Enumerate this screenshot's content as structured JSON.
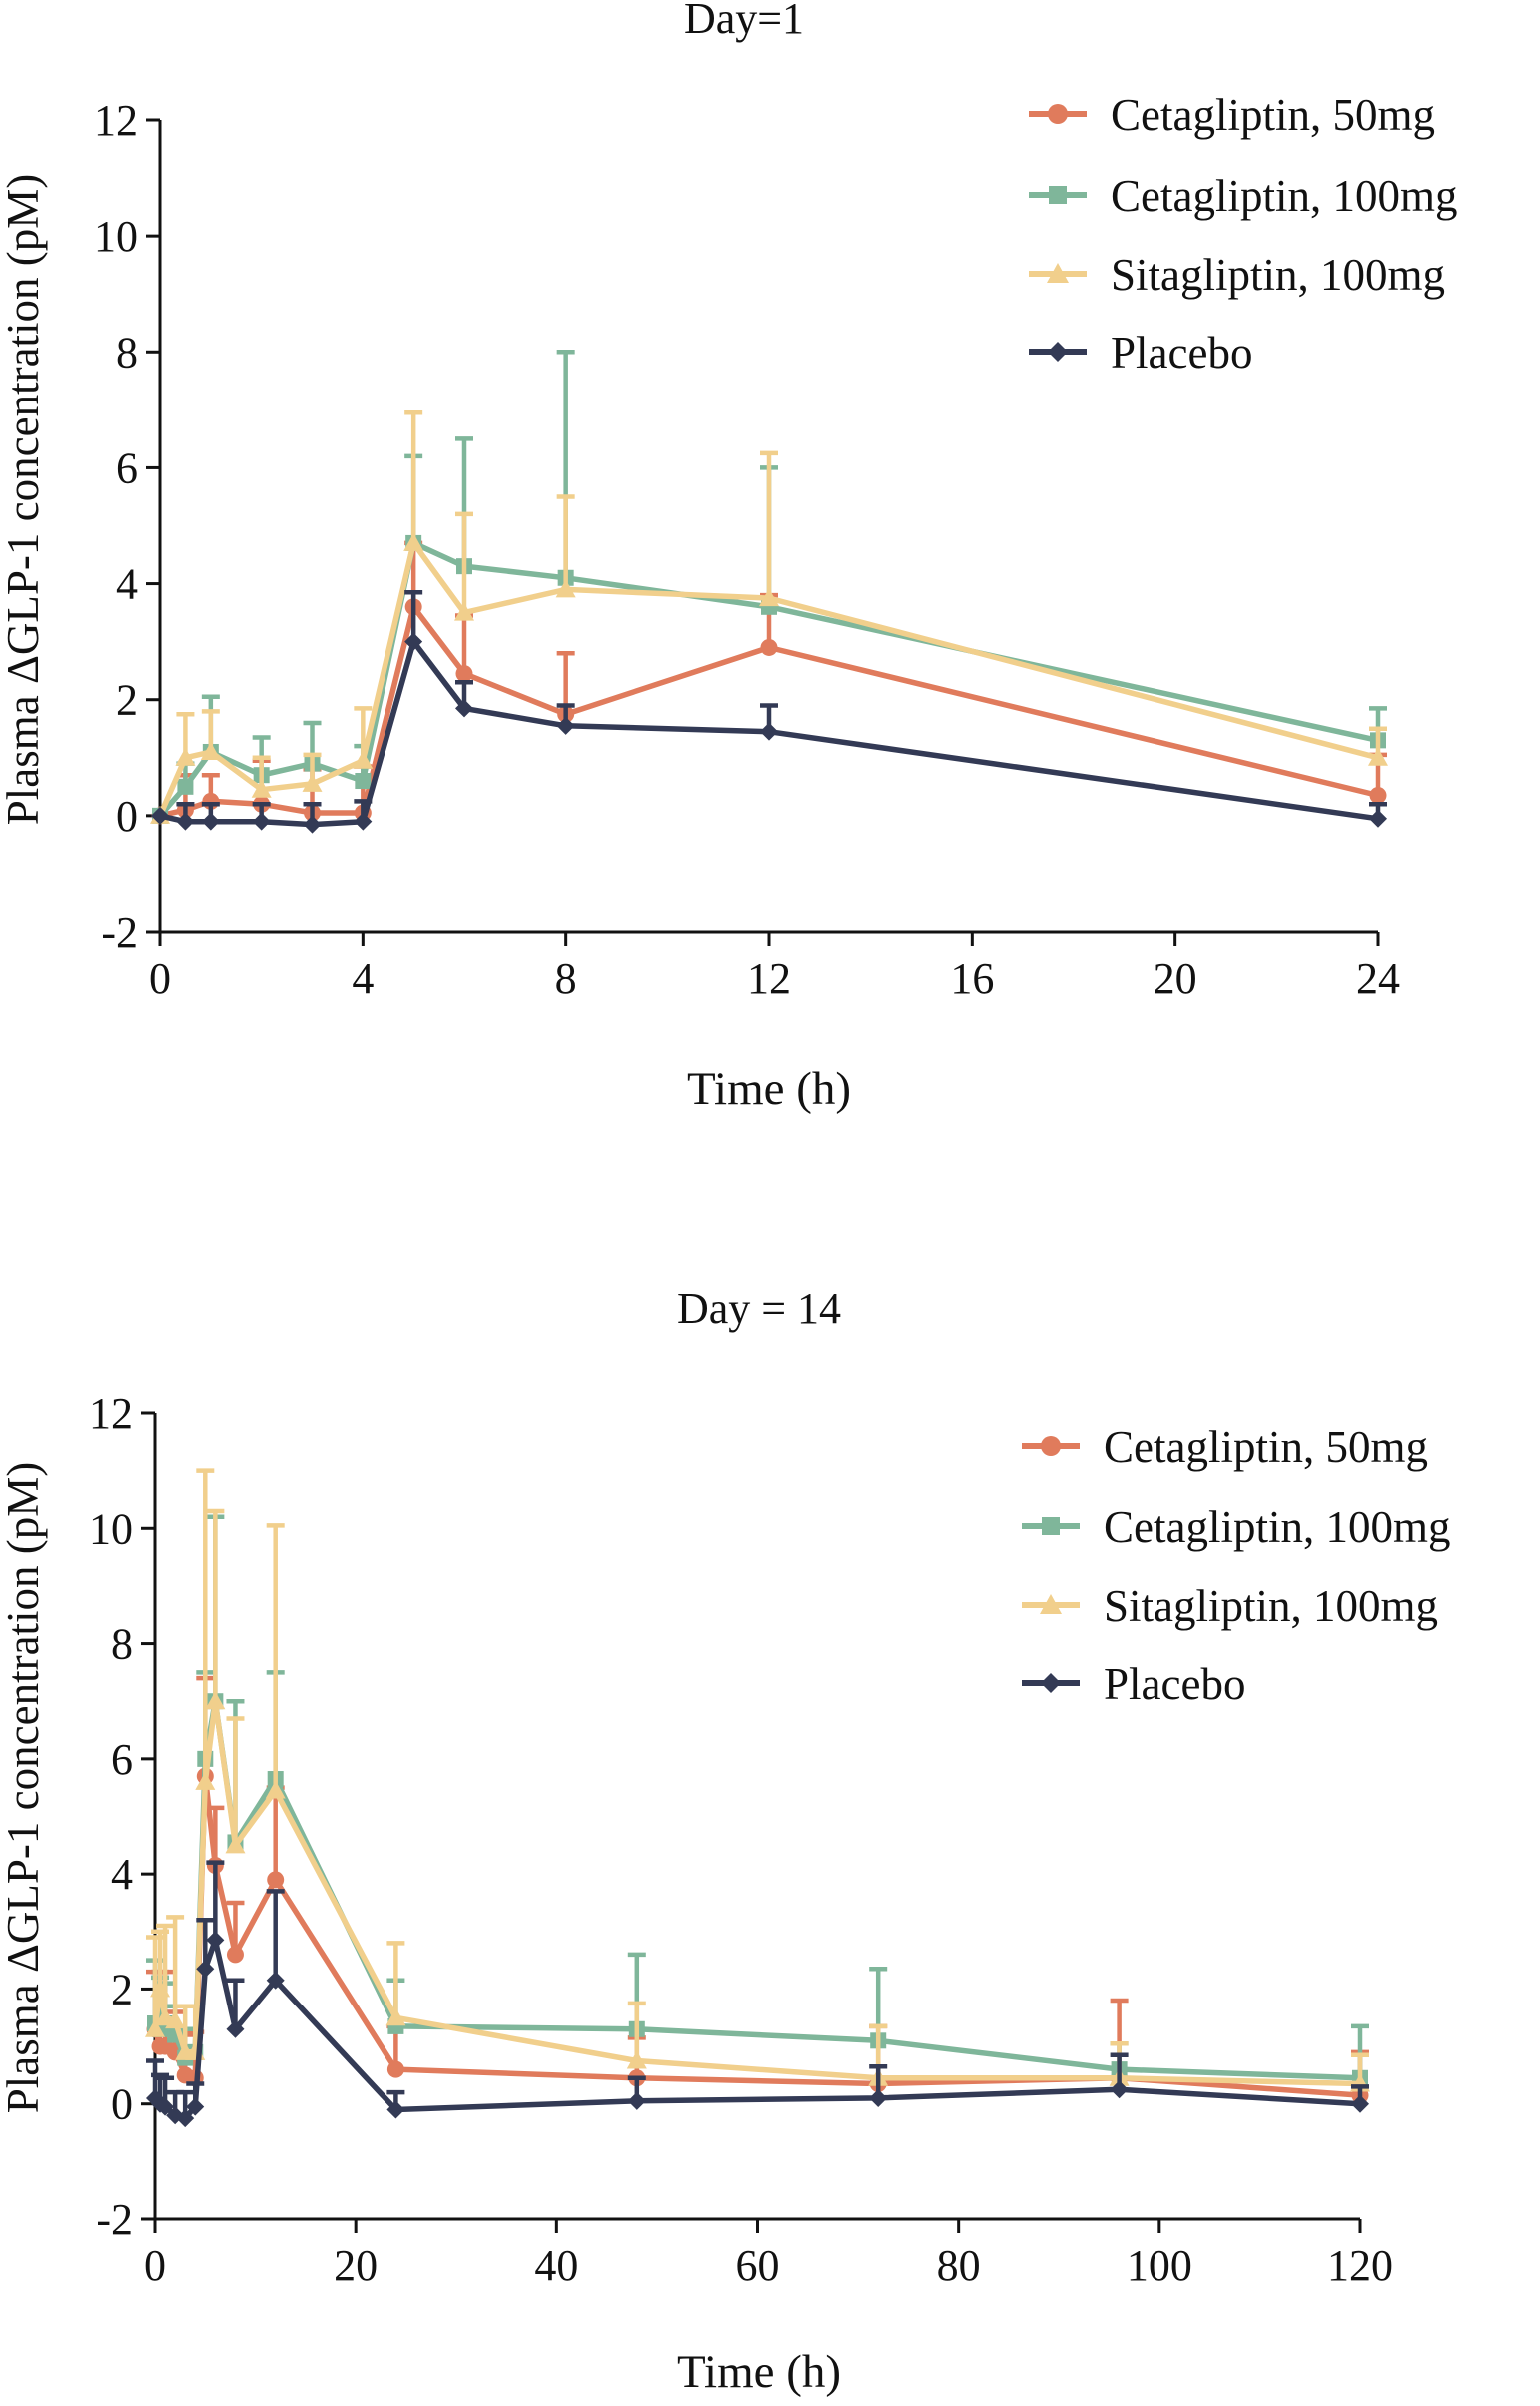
{
  "colors": {
    "cet50": "#e07b5c",
    "cet100": "#7fb69a",
    "sita100": "#f1cf8c",
    "placebo": "#333a55",
    "axis": "#111111"
  },
  "chart_data": [
    {
      "type": "line",
      "title": "Day=1",
      "xlabel": "Time (h)",
      "ylabel": "Plasma ΔGLP-1 concentration (pM)",
      "xlim": [
        0,
        24
      ],
      "ylim": [
        -2,
        12
      ],
      "xticks": [
        0,
        4,
        8,
        12,
        16,
        20,
        24
      ],
      "yticks": [
        -2,
        0,
        2,
        4,
        6,
        8,
        10,
        12
      ],
      "xtick_labels": [
        "0",
        "4",
        "8",
        "12",
        "16",
        "20",
        "24"
      ],
      "ytick_labels": [
        "-2",
        "0",
        "2",
        "4",
        "6",
        "8",
        "10",
        "12"
      ],
      "legend_position": "top-right",
      "series": [
        {
          "name": "Cetagliptin, 50mg",
          "color_key": "cet50",
          "marker": "circle",
          "x": [
            0,
            0.5,
            1,
            2,
            3,
            4,
            5,
            6,
            8,
            12,
            24
          ],
          "values": [
            0,
            0.1,
            0.25,
            0.2,
            0.05,
            0.05,
            3.6,
            2.45,
            1.75,
            2.9,
            0.35
          ],
          "errors": [
            0,
            0.6,
            0.45,
            0.75,
            0.75,
            0.8,
            1.1,
            1.0,
            1.05,
            0.9,
            0.7
          ]
        },
        {
          "name": "Cetagliptin, 100mg",
          "color_key": "cet100",
          "marker": "square",
          "x": [
            0,
            0.5,
            1,
            2,
            3,
            4,
            5,
            6,
            8,
            12,
            24
          ],
          "values": [
            0,
            0.5,
            1.1,
            0.7,
            0.9,
            0.6,
            4.7,
            4.3,
            4.1,
            3.6,
            1.3
          ],
          "errors": [
            0,
            0.4,
            0.95,
            0.65,
            0.7,
            0.6,
            1.5,
            2.2,
            3.9,
            2.4,
            0.55
          ]
        },
        {
          "name": "Sitagliptin, 100mg",
          "color_key": "sita100",
          "marker": "triangle",
          "x": [
            0,
            0.5,
            1,
            2,
            3,
            4,
            5,
            6,
            8,
            12,
            24
          ],
          "values": [
            0,
            1.0,
            1.1,
            0.45,
            0.55,
            0.95,
            4.7,
            3.5,
            3.9,
            3.75,
            1.0
          ],
          "errors": [
            0,
            0.75,
            0.7,
            0.55,
            0.5,
            0.9,
            2.25,
            1.7,
            1.6,
            2.5,
            0.5
          ]
        },
        {
          "name": "Placebo",
          "color_key": "placebo",
          "marker": "diamond",
          "x": [
            0,
            0.5,
            1,
            2,
            3,
            4,
            5,
            6,
            8,
            12,
            24
          ],
          "values": [
            0,
            -0.1,
            -0.1,
            -0.1,
            -0.15,
            -0.1,
            3.0,
            1.85,
            1.55,
            1.45,
            -0.05
          ],
          "errors": [
            0,
            0.3,
            0.3,
            0.3,
            0.35,
            0.35,
            0.85,
            0.45,
            0.35,
            0.45,
            0.25
          ]
        }
      ]
    },
    {
      "type": "line",
      "title": "Day = 14",
      "xlabel": "Time (h)",
      "ylabel": "Plasma ΔGLP-1 concentration (pM)",
      "xlim": [
        0,
        120
      ],
      "ylim": [
        -2,
        12
      ],
      "xticks": [
        0,
        20,
        40,
        60,
        80,
        100,
        120
      ],
      "yticks": [
        -2,
        0,
        2,
        4,
        6,
        8,
        10,
        12
      ],
      "xtick_labels": [
        "0",
        "20",
        "40",
        "60",
        "80",
        "100",
        "120"
      ],
      "ytick_labels": [
        "-2",
        "0",
        "2",
        "4",
        "6",
        "8",
        "10",
        "12"
      ],
      "legend_position": "top-right",
      "series": [
        {
          "name": "Cetagliptin, 50mg",
          "color_key": "cet50",
          "marker": "circle",
          "x": [
            0,
            0.5,
            1,
            2,
            3,
            4,
            5,
            6,
            8,
            12,
            24,
            48,
            72,
            96,
            120
          ],
          "values": [
            1.3,
            1.0,
            1.0,
            0.9,
            0.5,
            0.45,
            5.7,
            4.15,
            2.6,
            3.9,
            0.6,
            0.45,
            0.35,
            0.45,
            0.15
          ],
          "errors": [
            1.0,
            1.3,
            1.3,
            0.7,
            0.7,
            0.8,
            1.7,
            1.0,
            0.9,
            1.6,
            0.75,
            0.7,
            1.0,
            1.35,
            0.75
          ]
        },
        {
          "name": "Cetagliptin, 100mg",
          "color_key": "cet100",
          "marker": "square",
          "x": [
            0,
            0.5,
            1,
            2,
            3,
            4,
            5,
            6,
            8,
            12,
            24,
            48,
            72,
            96,
            120
          ],
          "values": [
            1.4,
            1.3,
            1.4,
            1.2,
            0.8,
            0.9,
            6.0,
            7.0,
            4.55,
            5.65,
            1.35,
            1.3,
            1.1,
            0.6,
            0.45
          ],
          "errors": [
            1.1,
            0.9,
            0.7,
            0.5,
            0.5,
            0.8,
            1.5,
            3.2,
            2.45,
            1.85,
            0.8,
            1.3,
            1.25,
            0.45,
            0.9
          ]
        },
        {
          "name": "Sitagliptin, 100mg",
          "color_key": "sita100",
          "marker": "triangle",
          "x": [
            0,
            0.5,
            1,
            2,
            3,
            4,
            5,
            6,
            8,
            12,
            24,
            48,
            72,
            96,
            120
          ],
          "values": [
            1.3,
            2.0,
            1.5,
            1.45,
            0.9,
            0.9,
            5.6,
            7.0,
            4.5,
            5.45,
            1.5,
            0.75,
            0.45,
            0.45,
            0.35
          ],
          "errors": [
            1.6,
            1.0,
            1.6,
            1.8,
            0.8,
            0.8,
            5.4,
            3.3,
            2.2,
            4.6,
            1.3,
            1.0,
            0.9,
            0.6,
            0.5
          ]
        },
        {
          "name": "Placebo",
          "color_key": "placebo",
          "marker": "diamond",
          "x": [
            0,
            0.5,
            1,
            2,
            3,
            4,
            5,
            6,
            8,
            12,
            24,
            48,
            72,
            96,
            120
          ],
          "values": [
            0.1,
            0.0,
            -0.05,
            -0.2,
            -0.25,
            -0.05,
            2.35,
            2.85,
            1.3,
            2.15,
            -0.1,
            0.05,
            0.1,
            0.25,
            0.0
          ],
          "errors": [
            0.65,
            0.5,
            0.5,
            0.4,
            0.45,
            0.4,
            0.85,
            1.35,
            0.85,
            1.55,
            0.3,
            0.4,
            0.55,
            0.6,
            0.3
          ]
        }
      ]
    }
  ]
}
